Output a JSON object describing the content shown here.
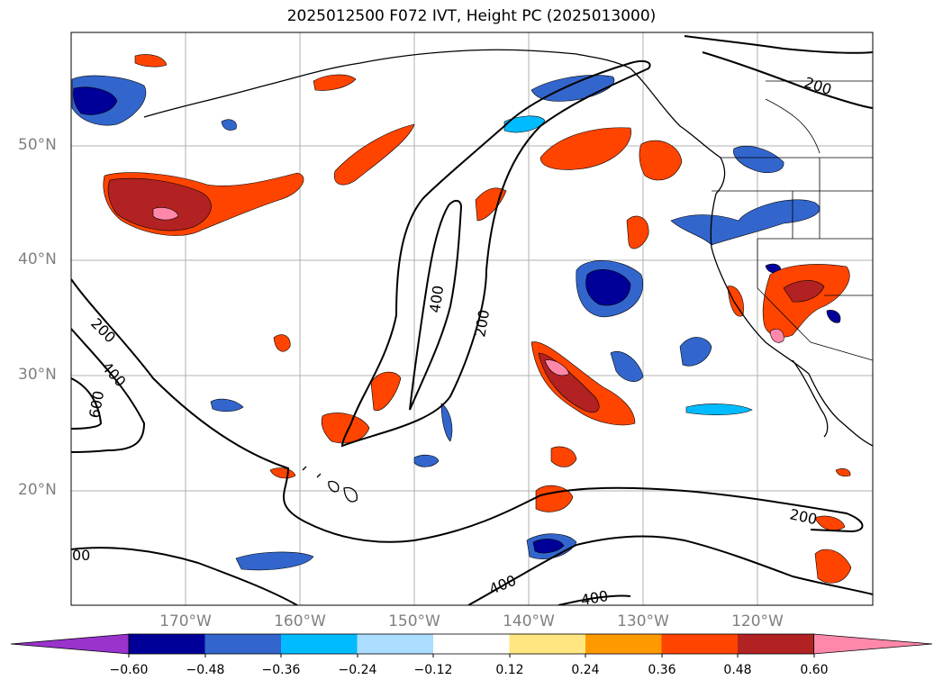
{
  "title": "2025012500 F072 IVT, Height PC (2025013000)",
  "latitude_labels": [
    "50°N",
    "40°N",
    "30°N",
    "20°N"
  ],
  "longitude_labels": [
    "170°W",
    "160°W",
    "150°W",
    "140°W",
    "130°W",
    "120°W"
  ],
  "contour_labels": [
    "200",
    "200",
    "200",
    "200",
    "400",
    "400",
    "400",
    "400",
    "600",
    "00"
  ],
  "colorbar": {
    "ticks": [
      "−0.60",
      "−0.48",
      "−0.36",
      "−0.24",
      "−0.12",
      "0.12",
      "0.24",
      "0.36",
      "0.48",
      "0.60"
    ],
    "colors": [
      "#9933cc",
      "#000099",
      "#3366cc",
      "#00bbff",
      "#aaddff",
      "#ffffff",
      "#ffe680",
      "#ff9900",
      "#ff4400",
      "#b22222",
      "#ff88aa"
    ]
  }
}
